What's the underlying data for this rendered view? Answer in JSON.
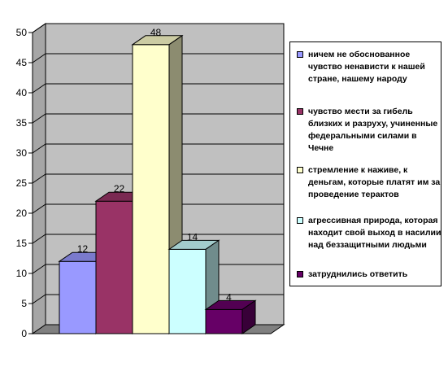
{
  "chart_data": {
    "type": "bar",
    "title": "",
    "xlabel": "",
    "ylabel": "",
    "ylim": [
      0,
      50
    ],
    "yticks": [
      0,
      5,
      10,
      15,
      20,
      25,
      30,
      35,
      40,
      45,
      50
    ],
    "grid": true,
    "legend_position": "right",
    "three_d": true,
    "categories": [
      "ничем не обоснованное чувство ненависти к нашей стране, нашему народу",
      "чувство мести за гибель близких и разруху, учиненные федеральными силами в Чечне",
      "стремление к наживе, к деньгам, которые платят им за проведение терактов",
      "агрессивная природа, которая находит свой выход в насилии над беззащитными людьми",
      "затруднились ответить"
    ],
    "values": [
      12,
      22,
      48,
      14,
      4
    ],
    "data_labels": [
      "12",
      "22",
      "48",
      "14",
      "4"
    ],
    "colors": [
      "#9999ff",
      "#993366",
      "#ffffcc",
      "#ccffff",
      "#660066"
    ],
    "wall_color": "#c0c0c0",
    "floor_color": "#808080"
  }
}
